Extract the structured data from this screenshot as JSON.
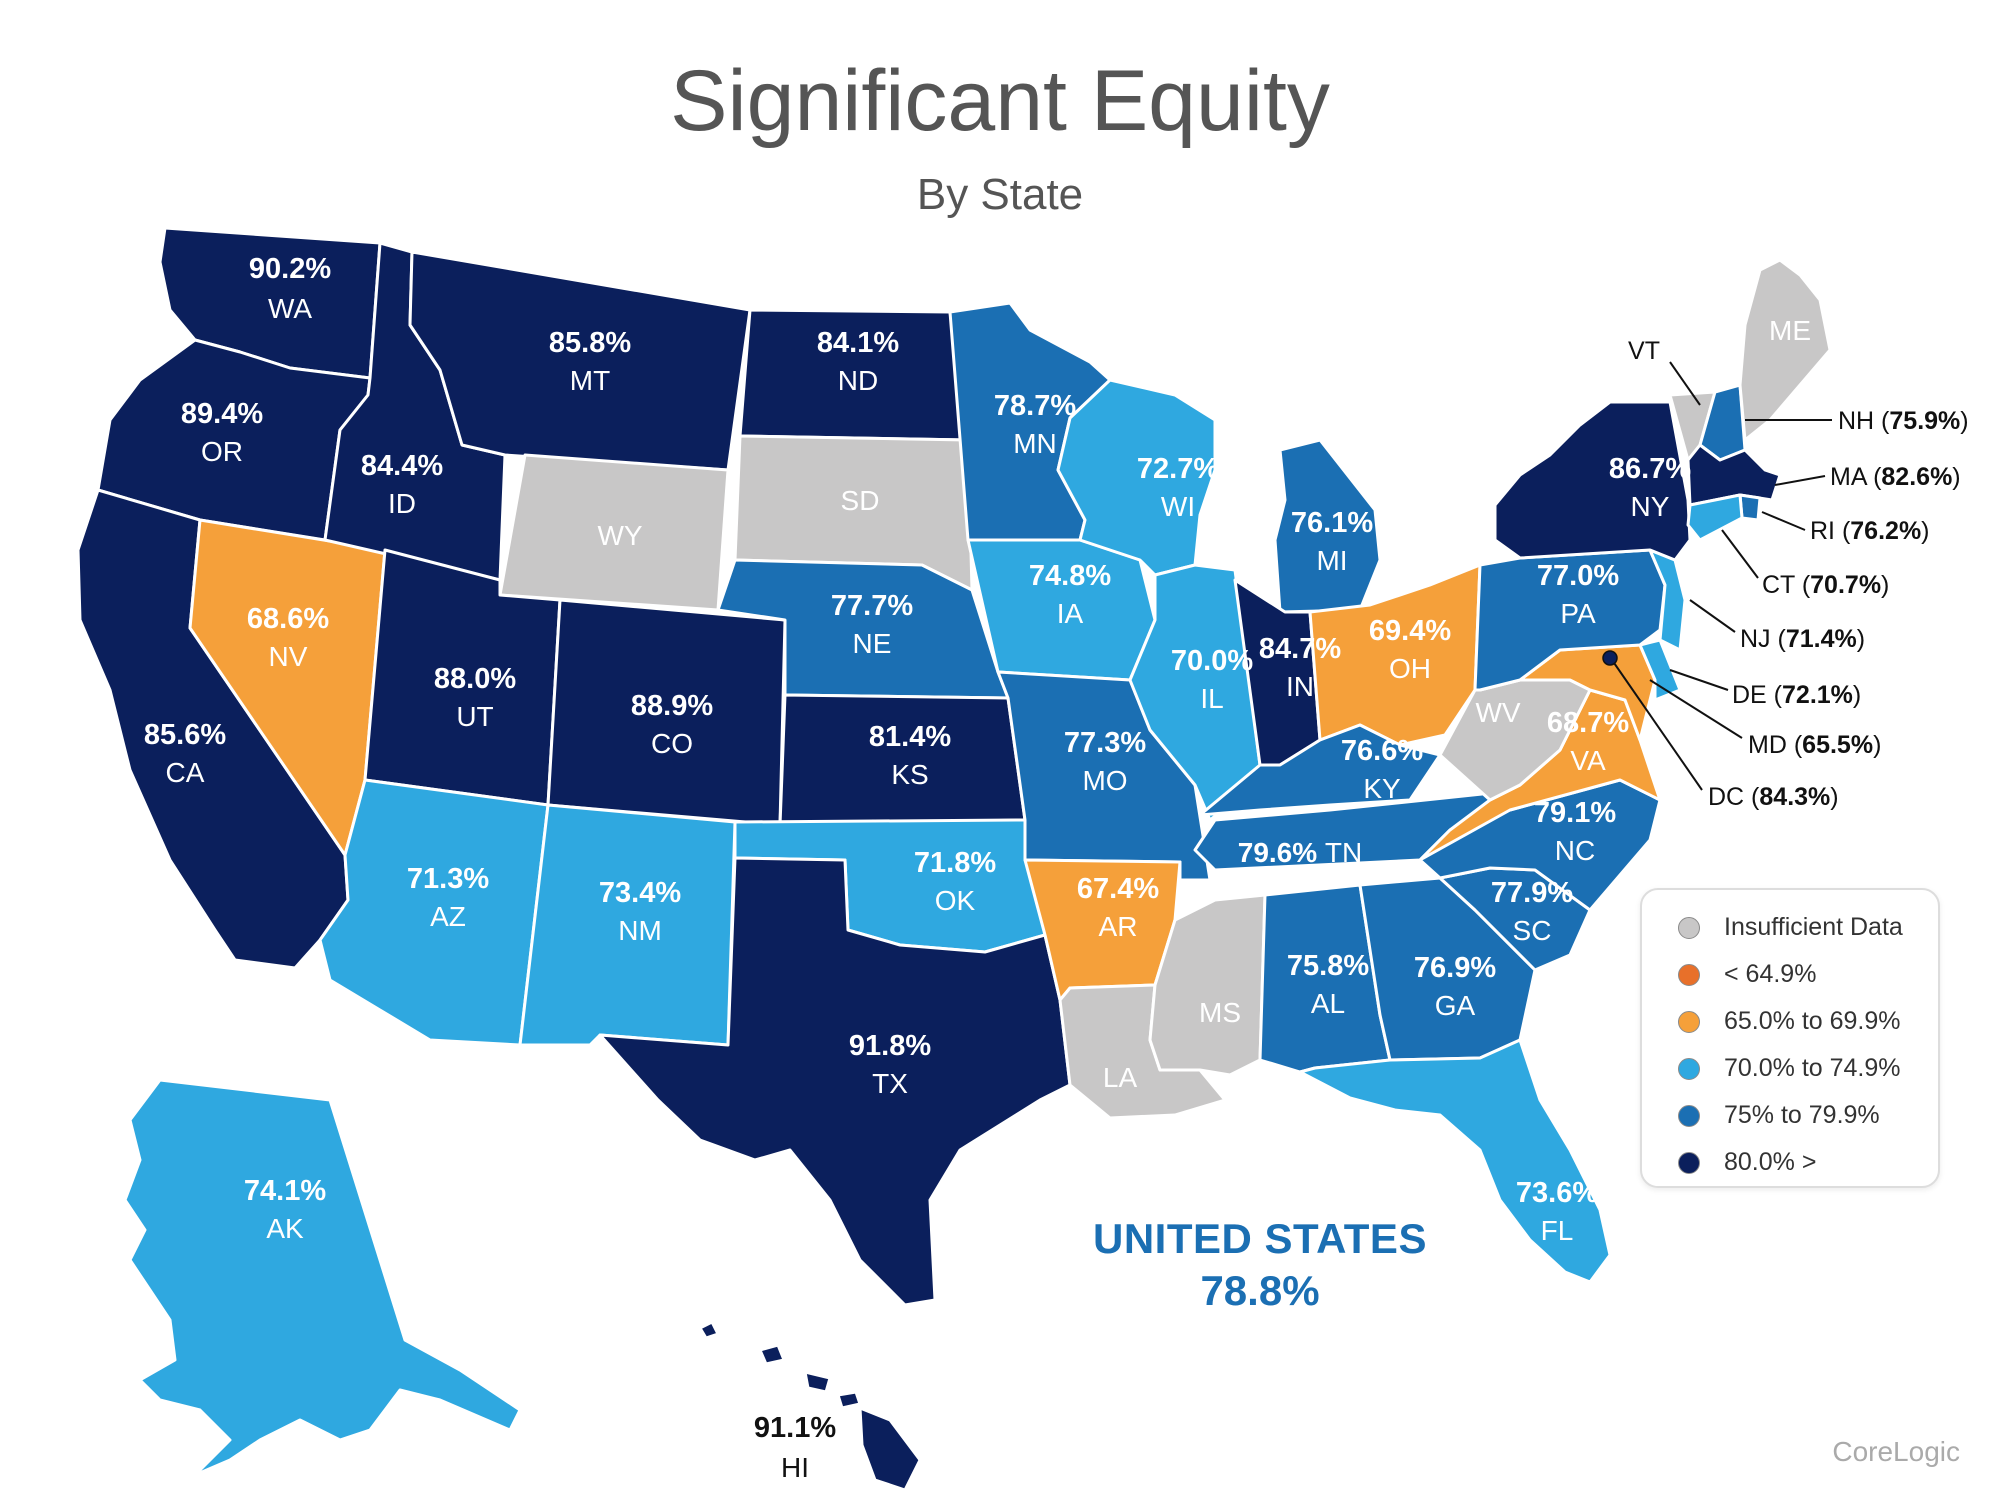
{
  "header": {
    "title": "Significant Equity",
    "subtitle": "By State"
  },
  "colors": {
    "insufficient": "#c8c7c7",
    "lt65": "#e8702a",
    "c65_70": "#f5a03a",
    "c70_75": "#2fa8e0",
    "c75_80": "#1b6fb3",
    "c80": "#0b1f5c",
    "border": "#ffffff"
  },
  "legend": [
    {
      "label": "Insufficient Data",
      "color": "#c8c7c7"
    },
    {
      "label": "< 64.9%",
      "color": "#e8702a"
    },
    {
      "label": "65.0% to 69.9%",
      "color": "#f5a03a"
    },
    {
      "label": "70.0% to 74.9%",
      "color": "#2fa8e0"
    },
    {
      "label": "75% to 79.9%",
      "color": "#1b6fb3"
    },
    {
      "label": "80.0% >",
      "color": "#0b1f5c"
    }
  ],
  "states": [
    {
      "abbr": "WA",
      "value": "90.2%",
      "category": "c80"
    },
    {
      "abbr": "OR",
      "value": "89.4%",
      "category": "c80"
    },
    {
      "abbr": "CA",
      "value": "85.6%",
      "category": "c80"
    },
    {
      "abbr": "NV",
      "value": "68.6%",
      "category": "c65_70"
    },
    {
      "abbr": "ID",
      "value": "84.4%",
      "category": "c80"
    },
    {
      "abbr": "MT",
      "value": "85.8%",
      "category": "c80"
    },
    {
      "abbr": "WY",
      "value": "",
      "category": "insufficient"
    },
    {
      "abbr": "UT",
      "value": "88.0%",
      "category": "c80"
    },
    {
      "abbr": "AZ",
      "value": "71.3%",
      "category": "c70_75"
    },
    {
      "abbr": "CO",
      "value": "88.9%",
      "category": "c80"
    },
    {
      "abbr": "NM",
      "value": "73.4%",
      "category": "c70_75"
    },
    {
      "abbr": "ND",
      "value": "84.1%",
      "category": "c80"
    },
    {
      "abbr": "SD",
      "value": "",
      "category": "insufficient"
    },
    {
      "abbr": "NE",
      "value": "77.7%",
      "category": "c75_80"
    },
    {
      "abbr": "KS",
      "value": "81.4%",
      "category": "c80"
    },
    {
      "abbr": "OK",
      "value": "71.8%",
      "category": "c70_75"
    },
    {
      "abbr": "TX",
      "value": "91.8%",
      "category": "c80"
    },
    {
      "abbr": "MN",
      "value": "78.7%",
      "category": "c75_80"
    },
    {
      "abbr": "IA",
      "value": "74.8%",
      "category": "c70_75"
    },
    {
      "abbr": "MO",
      "value": "77.3%",
      "category": "c75_80"
    },
    {
      "abbr": "AR",
      "value": "67.4%",
      "category": "c65_70"
    },
    {
      "abbr": "LA",
      "value": "",
      "category": "insufficient"
    },
    {
      "abbr": "WI",
      "value": "72.7%",
      "category": "c70_75"
    },
    {
      "abbr": "IL",
      "value": "70.0%",
      "category": "c70_75"
    },
    {
      "abbr": "MI",
      "value": "76.1%",
      "category": "c75_80"
    },
    {
      "abbr": "IN",
      "value": "84.7%",
      "category": "c80"
    },
    {
      "abbr": "OH",
      "value": "69.4%",
      "category": "c65_70"
    },
    {
      "abbr": "KY",
      "value": "76.6%",
      "category": "c75_80"
    },
    {
      "abbr": "TN",
      "value": "79.6%",
      "category": "c75_80"
    },
    {
      "abbr": "MS",
      "value": "",
      "category": "insufficient"
    },
    {
      "abbr": "AL",
      "value": "75.8%",
      "category": "c75_80"
    },
    {
      "abbr": "GA",
      "value": "76.9%",
      "category": "c75_80"
    },
    {
      "abbr": "FL",
      "value": "73.6%",
      "category": "c70_75"
    },
    {
      "abbr": "SC",
      "value": "77.9%",
      "category": "c75_80"
    },
    {
      "abbr": "NC",
      "value": "79.1%",
      "category": "c75_80"
    },
    {
      "abbr": "VA",
      "value": "68.7%",
      "category": "c65_70"
    },
    {
      "abbr": "WV",
      "value": "",
      "category": "insufficient"
    },
    {
      "abbr": "PA",
      "value": "77.0%",
      "category": "c75_80"
    },
    {
      "abbr": "NY",
      "value": "86.7%",
      "category": "c80"
    },
    {
      "abbr": "VT",
      "value": "",
      "category": "insufficient"
    },
    {
      "abbr": "ME",
      "value": "",
      "category": "insufficient"
    },
    {
      "abbr": "NH",
      "value": "75.9%",
      "category": "c75_80"
    },
    {
      "abbr": "MA",
      "value": "82.6%",
      "category": "c80"
    },
    {
      "abbr": "RI",
      "value": "76.2%",
      "category": "c75_80"
    },
    {
      "abbr": "CT",
      "value": "70.7%",
      "category": "c70_75"
    },
    {
      "abbr": "NJ",
      "value": "71.4%",
      "category": "c70_75"
    },
    {
      "abbr": "DE",
      "value": "72.1%",
      "category": "c70_75"
    },
    {
      "abbr": "MD",
      "value": "65.5%",
      "category": "c65_70"
    },
    {
      "abbr": "DC",
      "value": "84.3%",
      "category": "c80"
    },
    {
      "abbr": "AK",
      "value": "74.1%",
      "category": "c70_75"
    },
    {
      "abbr": "HI",
      "value": "91.1%",
      "category": "c80"
    }
  ],
  "national": {
    "name": "UNITED STATES",
    "value": "78.8%"
  },
  "source": "CoreLogic"
}
